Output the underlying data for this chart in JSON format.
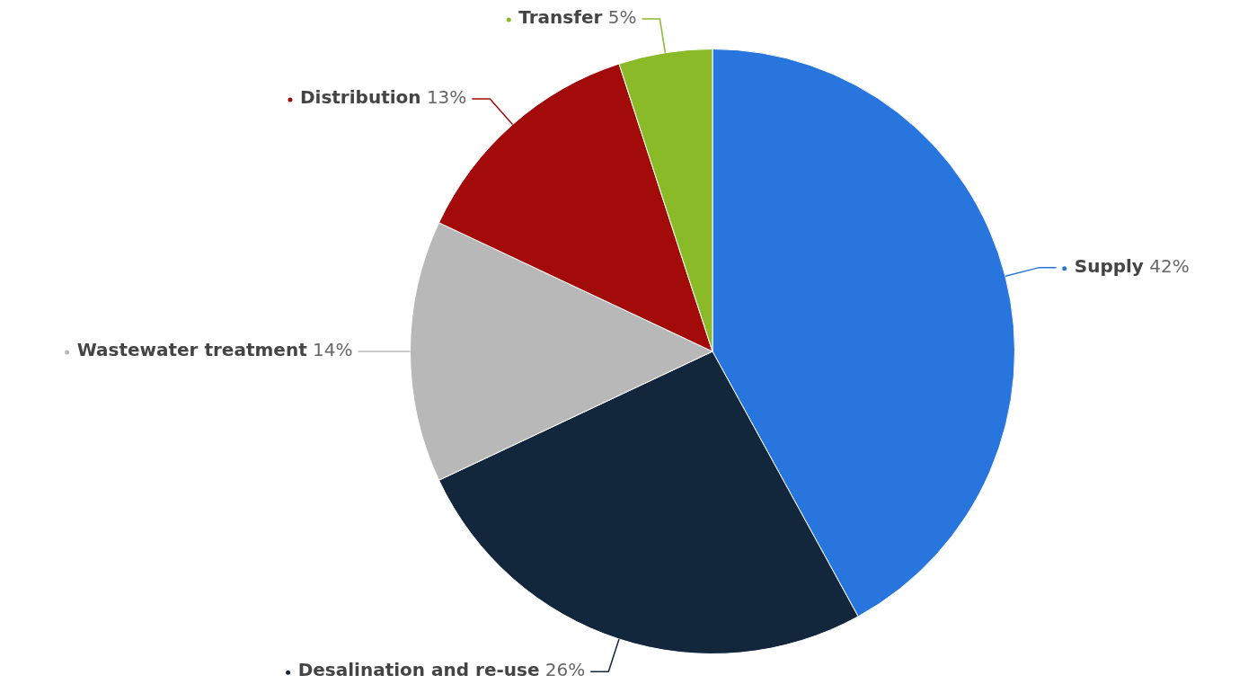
{
  "chart_data": {
    "type": "pie",
    "categories": [
      "Supply",
      "Desalination and re-use",
      "Wastewater treatment",
      "Distribution",
      "Transfer"
    ],
    "values": [
      42,
      26,
      14,
      13,
      5
    ],
    "value_labels": [
      "42%",
      "26%",
      "14%",
      "13%",
      "5%"
    ],
    "colors": [
      "#2876dd",
      "#12263c",
      "#b8b8b8",
      "#a30b0b",
      "#8aba28"
    ],
    "legend": false
  }
}
